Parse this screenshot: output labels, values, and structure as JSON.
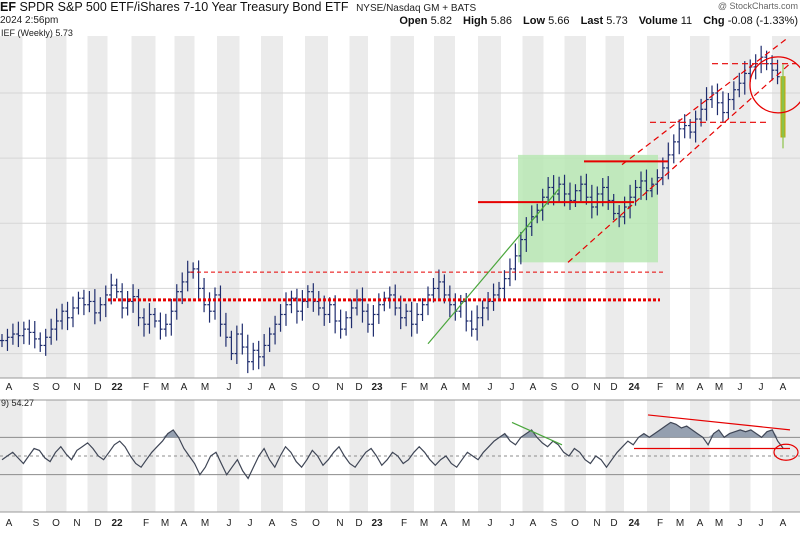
{
  "header": {
    "ticker_fragment": "EF",
    "title": "SPDR S&P 500 ETF/iShares 7-10 Year Treasury Bond ETF",
    "exchange": "NYSE/Nasdaq GM + BATS",
    "watermark": "@ StockCharts.com",
    "datetime": "2024 2:56pm",
    "ohlc": [
      {
        "label": "Open",
        "value": "5.82"
      },
      {
        "label": "High",
        "value": "5.86"
      },
      {
        "label": "Low",
        "value": "5.66"
      },
      {
        "label": "Last",
        "value": "5.73"
      },
      {
        "label": "Volume",
        "value": "11"
      },
      {
        "label": "Chg",
        "value": "-0.08 (-1.33%)"
      }
    ]
  },
  "price_legend": "IEF (Weekly) 5.73",
  "indicator_legend": "9) 54.27",
  "colors": {
    "price": "#1f2d6e",
    "indicator_line": "#3f4656",
    "indicator_fill": "#8b97a8",
    "shade": "#ebebeb",
    "green_box": "#b8e8b4",
    "green_line": "#4aa63c",
    "red": "#e60000",
    "last_bar": "#8bc34a",
    "last_bar_edge": "#c9a400"
  },
  "chart_data": [
    {
      "type": "bar",
      "description_series": "Weekly OHLC price ratio",
      "x_axis_ticks": [
        "A",
        "S",
        "O",
        "N",
        "D",
        "22",
        "F",
        "M",
        "A",
        "M",
        "J",
        "J",
        "A",
        "S",
        "O",
        "N",
        "D",
        "23",
        "F",
        "M",
        "A",
        "M",
        "J",
        "J",
        "A",
        "S",
        "O",
        "N",
        "D",
        "24",
        "F",
        "M",
        "A",
        "M",
        "J",
        "J",
        "A"
      ],
      "ohlc_weekly_close_approx": [
        4.48,
        4.5,
        4.52,
        4.51,
        4.55,
        4.53,
        4.49,
        4.45,
        4.5,
        4.55,
        4.6,
        4.66,
        4.62,
        4.68,
        4.74,
        4.7,
        4.72,
        4.65,
        4.7,
        4.76,
        4.82,
        4.78,
        4.68,
        4.72,
        4.75,
        4.62,
        4.58,
        4.64,
        4.6,
        4.55,
        4.58,
        4.66,
        4.78,
        4.84,
        4.9,
        4.92,
        4.8,
        4.7,
        4.66,
        4.76,
        4.58,
        4.5,
        4.4,
        4.52,
        4.44,
        4.35,
        4.42,
        4.38,
        4.45,
        4.52,
        4.58,
        4.64,
        4.7,
        4.74,
        4.66,
        4.72,
        4.78,
        4.72,
        4.68,
        4.64,
        4.7,
        4.6,
        4.55,
        4.62,
        4.68,
        4.73,
        4.66,
        4.58,
        4.64,
        4.7,
        4.74,
        4.76,
        4.68,
        4.62,
        4.66,
        4.58,
        4.64,
        4.7,
        4.76,
        4.8,
        4.84,
        4.76,
        4.7,
        4.66,
        4.72,
        4.6,
        4.55,
        4.62,
        4.68,
        4.72,
        4.76,
        4.8,
        4.86,
        4.92,
        5.0,
        5.1,
        5.18,
        5.24,
        5.28,
        5.36,
        5.42,
        5.38,
        5.44,
        5.38,
        5.34,
        5.4,
        5.44,
        5.36,
        5.3,
        5.38,
        5.42,
        5.34,
        5.26,
        5.24,
        5.3,
        5.36,
        5.42,
        5.46,
        5.4,
        5.44,
        5.48,
        5.54,
        5.62,
        5.7,
        5.78,
        5.8,
        5.76,
        5.84,
        5.9,
        5.96,
        6.0,
        5.94,
        5.88,
        5.96,
        6.02,
        6.06,
        6.12,
        6.16,
        6.18,
        6.22,
        6.18,
        6.14,
        6.1,
        5.73
      ],
      "annotations": [
        {
          "kind": "horizontal_line",
          "style": "dotted",
          "color": "red",
          "level": 4.73
        },
        {
          "kind": "horizontal_line",
          "style": "dashed",
          "color": "red",
          "level": 4.9
        },
        {
          "kind": "horizontal_line",
          "style": "solid",
          "color": "red",
          "level": 5.33
        },
        {
          "kind": "horizontal_line",
          "style": "solid",
          "color": "red",
          "level": 5.58
        },
        {
          "kind": "horizontal_line",
          "style": "dashed",
          "color": "red",
          "level": 5.82
        },
        {
          "kind": "horizontal_line",
          "style": "dashed",
          "color": "red",
          "level": 6.18
        },
        {
          "kind": "trendline",
          "color": "green",
          "from": "2023-03",
          "to": "2023-08"
        },
        {
          "kind": "shaded_box",
          "color": "green",
          "from": "2023-07",
          "to": "2024-01"
        },
        {
          "kind": "rising_channel",
          "color": "red",
          "style": "dashed",
          "from": "2023-10",
          "to": "2024-07"
        },
        {
          "kind": "circle",
          "color": "red",
          "at": "2024-07"
        }
      ]
    },
    {
      "type": "line",
      "description_series": "Indicator 54.27",
      "values": [
        48,
        50,
        52,
        49,
        46,
        50,
        54,
        53,
        49,
        47,
        52,
        55,
        51,
        48,
        53,
        55,
        57,
        54,
        50,
        48,
        52,
        56,
        58,
        55,
        50,
        46,
        44,
        48,
        52,
        55,
        58,
        62,
        64,
        60,
        54,
        50,
        46,
        40,
        44,
        50,
        52,
        46,
        40,
        44,
        48,
        42,
        38,
        44,
        50,
        54,
        48,
        44,
        50,
        55,
        52,
        47,
        44,
        48,
        53,
        50,
        45,
        48,
        52,
        55,
        50,
        46,
        44,
        48,
        52,
        54,
        50,
        45,
        48,
        52,
        50,
        46,
        48,
        52,
        55,
        52,
        48,
        45,
        48,
        50,
        46,
        44,
        48,
        52,
        50,
        48,
        52,
        55,
        58,
        60,
        62,
        58,
        56,
        60,
        62,
        64,
        60,
        57,
        55,
        58,
        56,
        52,
        50,
        54,
        52,
        48,
        46,
        50,
        48,
        44,
        48,
        52,
        55,
        58,
        56,
        60,
        62,
        60,
        62,
        64,
        66,
        68,
        67,
        65,
        66,
        64,
        62,
        60,
        56,
        62,
        64,
        60,
        62,
        63,
        64,
        63,
        64,
        62,
        60,
        63,
        64,
        58,
        54.27
      ]
    }
  ]
}
